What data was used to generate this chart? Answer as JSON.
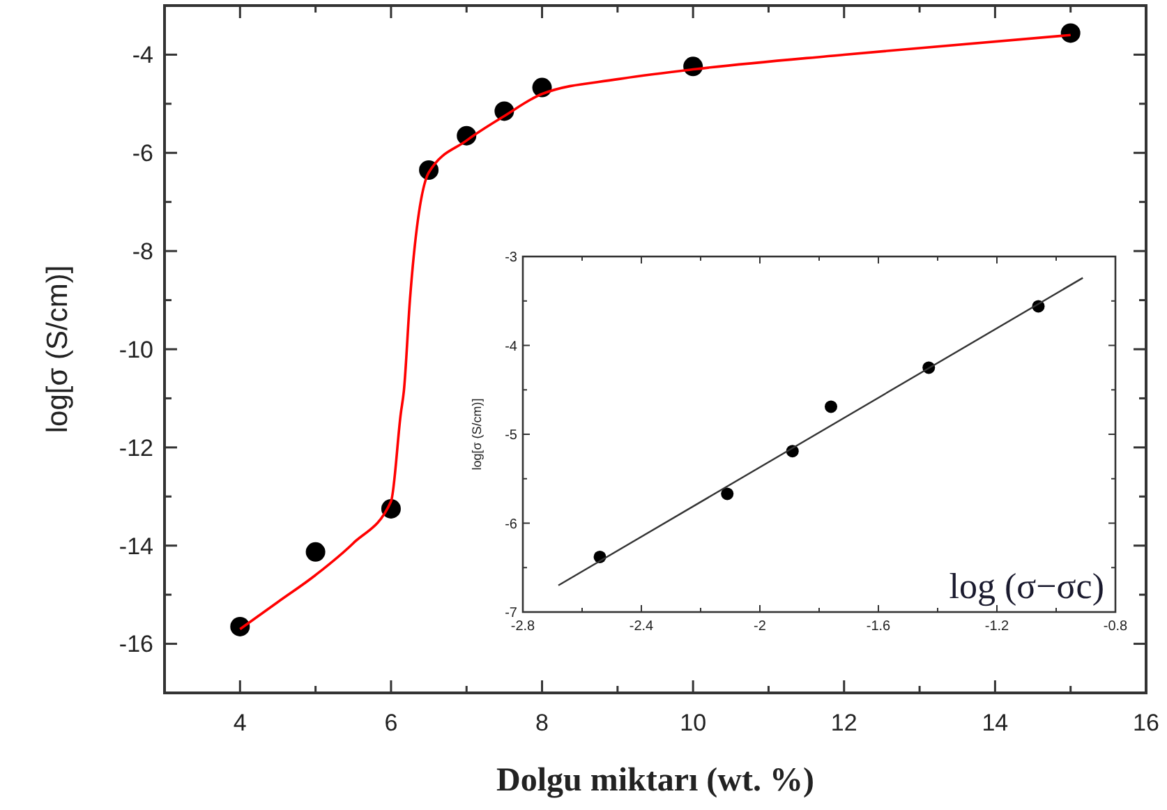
{
  "chart_data": [
    {
      "type": "scatter",
      "xlabel": "Dolgu miktarı (wt. %)",
      "ylabel": "log[σ  (S/cm)]",
      "xlim": [
        3,
        16
      ],
      "ylim": [
        -17,
        -3
      ],
      "xticks": [
        {
          "value": 3,
          "label": null
        },
        4,
        {
          "value": 5,
          "label": null
        },
        6,
        {
          "value": 7,
          "label": null
        },
        8,
        {
          "value": 9,
          "label": null
        },
        10,
        {
          "value": 11,
          "label": null
        },
        12,
        {
          "value": 13,
          "label": null
        },
        14,
        {
          "value": 15,
          "label": null
        },
        16
      ],
      "yticks": [
        {
          "value": -17,
          "label": null
        },
        -16,
        {
          "value": -15,
          "label": null
        },
        -14,
        {
          "value": -13,
          "label": null
        },
        -12,
        {
          "value": -11,
          "label": null
        },
        -10,
        {
          "value": -9,
          "label": null
        },
        -8,
        {
          "value": -7,
          "label": null
        },
        -6,
        {
          "value": -5,
          "label": null
        },
        -4,
        {
          "value": -3,
          "label": null
        }
      ],
      "grid": false,
      "marker": "circle",
      "series": [
        {
          "color": "#000000",
          "x": [
            4,
            5,
            6,
            6.5,
            7,
            7.5,
            8,
            10,
            15
          ],
          "values": [
            -15.65,
            -14.13,
            -13.25,
            -6.35,
            -5.65,
            -5.15,
            -4.67,
            -4.24,
            -3.56
          ]
        },
        {
          "type": "line",
          "color": "#ff0000",
          "marker": "none",
          "x": [
            4,
            4.5,
            5,
            5.5,
            6,
            6.13,
            6.17,
            6.25,
            6.5,
            7,
            7.5,
            8,
            9,
            10,
            12,
            15
          ],
          "values": [
            -15.7,
            -15.15,
            -14.6,
            -13.95,
            -13.1,
            -11.3,
            -10.85,
            -9,
            -6.4,
            -5.75,
            -5.25,
            -4.8,
            -4.5,
            -4.3,
            -4.0,
            -3.6
          ]
        }
      ]
    },
    {
      "type": "scatter",
      "ylabel": "log[σ  (S/cm)]",
      "annotations": [
        "log (σ−σc)"
      ],
      "xlim": [
        -2.8,
        -0.8
      ],
      "ylim": [
        -7,
        -3
      ],
      "xticks": [
        -2.8,
        {
          "value": -2.6,
          "label": null
        },
        -2.4,
        {
          "value": -2.2,
          "label": null
        },
        -2.0,
        {
          "value": -1.8,
          "label": null
        },
        -1.6,
        {
          "value": -1.4,
          "label": null
        },
        -1.2,
        {
          "value": -1.0,
          "label": null
        },
        -0.8
      ],
      "yticks": [
        -7,
        {
          "value": -6.5,
          "label": null
        },
        -6,
        {
          "value": -5.5,
          "label": null
        },
        -5,
        {
          "value": -4.5,
          "label": null
        },
        -4,
        {
          "value": -3.5,
          "label": null
        },
        -3
      ],
      "grid": false,
      "marker": "circle",
      "series": [
        {
          "color": "#000000",
          "x": [
            -2.54,
            -2.11,
            -1.89,
            -1.76,
            -1.43,
            -1.06
          ],
          "values": [
            -6.38,
            -5.67,
            -5.19,
            -4.69,
            -4.25,
            -3.56
          ]
        },
        {
          "type": "line",
          "color": "#333333",
          "marker": "none",
          "x": [
            -2.68,
            -0.91
          ],
          "values": [
            -6.7,
            -3.24
          ]
        }
      ]
    }
  ]
}
